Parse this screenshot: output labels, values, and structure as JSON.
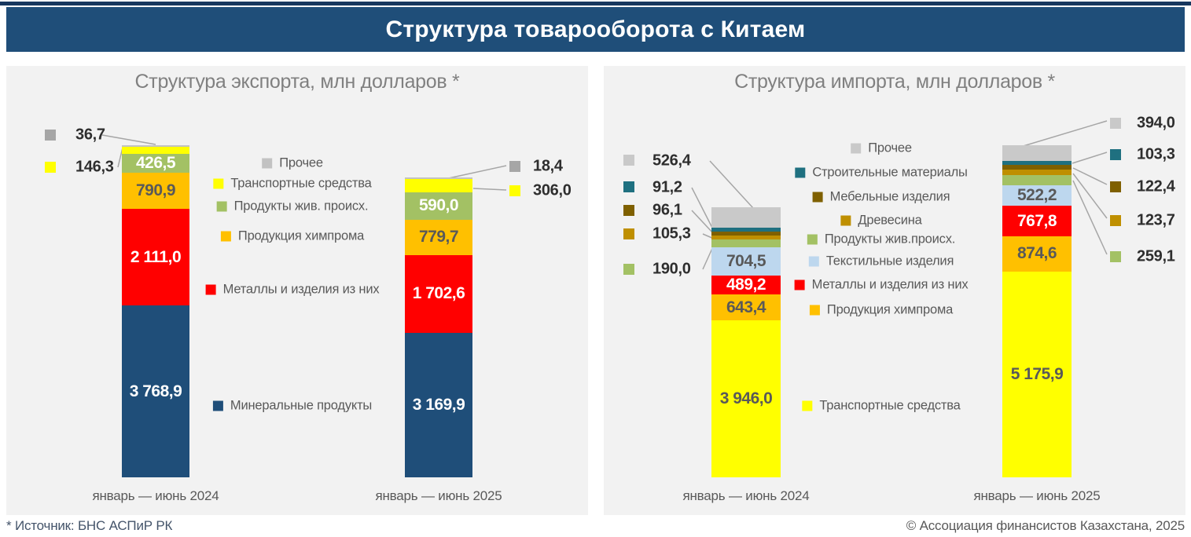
{
  "header": {
    "title": "Структура товарооборота с Китаем"
  },
  "footer": {
    "source": "* Источник: БНС АСПиР РК",
    "copyright": "© Ассоциация финансистов Казахстана, 2025"
  },
  "colors": {
    "banner_bg": "#1F4E79",
    "top_border": "#17375E",
    "panel_bg": "#F2F2F2",
    "title_text": "#808080",
    "legend_text": "#595959",
    "callout_text": "#2E2E2E",
    "connector_line": "#A6A6A6"
  },
  "chart_data": [
    {
      "type": "bar",
      "stacked": true,
      "title": "Структура экспорта, млн долларов *",
      "unit": "млн долларов",
      "categories": [
        "январь — июнь 2024",
        "январь — июнь 2025"
      ],
      "totals": [
        7280.3,
        6566.6
      ],
      "legend_position": "between-bars",
      "series": [
        {
          "name": "Минеральные продукты",
          "color": "#1F4E79",
          "label_color": "#FFFFFF",
          "values": [
            3768.9,
            3169.9
          ],
          "labels": [
            "3 768,9",
            "3 169,9"
          ]
        },
        {
          "name": "Металлы и изделия из них",
          "color": "#FF0000",
          "label_color": "#FFFFFF",
          "values": [
            2111.0,
            1702.6
          ],
          "labels": [
            "2 111,0",
            "1 702,6"
          ]
        },
        {
          "name": "Продукция химпрома",
          "color": "#FFC000",
          "label_color": "#595959",
          "values": [
            790.9,
            779.7
          ],
          "labels": [
            "790,9",
            "779,7"
          ]
        },
        {
          "name": "Продукты жив. происх.",
          "color": "#A3C164",
          "label_color": "#FFFFFF",
          "values": [
            426.5,
            590.0
          ],
          "labels": [
            "426,5",
            "590,0"
          ]
        },
        {
          "name": "Транспортные средства",
          "color": "#FFFF00",
          "callout": true,
          "values": [
            146.3,
            306.0
          ],
          "labels": [
            "146,3",
            "306,0"
          ]
        },
        {
          "name": "Прочее",
          "color": "#C2C2C2",
          "marker_color": "#A6A6A6",
          "callout": true,
          "values": [
            36.7,
            18.4
          ],
          "labels": [
            "36,7",
            "18,4"
          ]
        }
      ]
    },
    {
      "type": "bar",
      "stacked": true,
      "title": "Структура импорта, млн долларов *",
      "unit": "млн долларов",
      "categories": [
        "январь — июнь 2024",
        "январь — июнь 2025"
      ],
      "totals": [
        6792.1,
        8343.0
      ],
      "legend_position": "between-bars",
      "series": [
        {
          "name": "Транспортные средства",
          "color": "#FFFF00",
          "label_color": "#595959",
          "values": [
            3946.0,
            5175.9
          ],
          "labels": [
            "3 946,0",
            "5 175,9"
          ]
        },
        {
          "name": "Продукция химпрома",
          "color": "#FFC000",
          "label_color": "#595959",
          "values": [
            643.4,
            874.6
          ],
          "labels": [
            "643,4",
            "874,6"
          ]
        },
        {
          "name": "Металлы и изделия из них",
          "color": "#FF0000",
          "label_color": "#FFFFFF",
          "values": [
            489.2,
            767.8
          ],
          "labels": [
            "489,2",
            "767,8"
          ]
        },
        {
          "name": "Текстильные изделия",
          "color": "#BDD7EE",
          "label_color": "#595959",
          "values": [
            704.5,
            522.2
          ],
          "labels": [
            "704,5",
            "522,2"
          ]
        },
        {
          "name": "Продукты жив.происх.",
          "color": "#A3C164",
          "callout": true,
          "values": [
            190.0,
            259.1
          ],
          "labels": [
            "190,0",
            "259,1"
          ]
        },
        {
          "name": "Древесина",
          "color": "#BF8F00",
          "callout": true,
          "values": [
            105.3,
            123.7
          ],
          "labels": [
            "105,3",
            "123,7"
          ]
        },
        {
          "name": "Мебельные изделия",
          "color": "#7F6000",
          "callout": true,
          "values": [
            96.1,
            122.4
          ],
          "labels": [
            "96,1",
            "122,4"
          ]
        },
        {
          "name": "Строительные материалы",
          "color": "#1F7080",
          "callout": true,
          "values": [
            91.2,
            103.3
          ],
          "labels": [
            "91,2",
            "103,3"
          ]
        },
        {
          "name": "Прочее",
          "color": "#C9C9C9",
          "callout": true,
          "values": [
            526.4,
            394.0
          ],
          "labels": [
            "526,4",
            "394,0"
          ]
        }
      ]
    }
  ]
}
